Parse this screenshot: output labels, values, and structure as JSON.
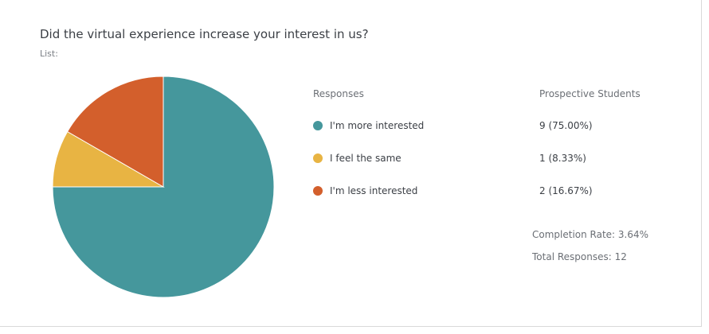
{
  "chart_data": {
    "type": "pie",
    "title": "Did the virtual experience increase your interest in us?",
    "subtitle": "List:",
    "column_headers": {
      "responses": "Responses",
      "audience": "Prospective Students"
    },
    "slices": [
      {
        "label": "I'm more interested",
        "value": 9,
        "display": "9 (75.00%)",
        "color": "#45979c"
      },
      {
        "label": "I feel the same",
        "value": 1,
        "display": "1 (8.33%)",
        "color": "#e8b443"
      },
      {
        "label": "I'm less interested",
        "value": 2,
        "display": "2 (16.67%)",
        "color": "#d35f2c"
      }
    ],
    "legend": "right",
    "grid": false
  },
  "stats": {
    "completion_rate": "Completion Rate: 3.64%",
    "total_responses": "Total Responses: 12"
  }
}
